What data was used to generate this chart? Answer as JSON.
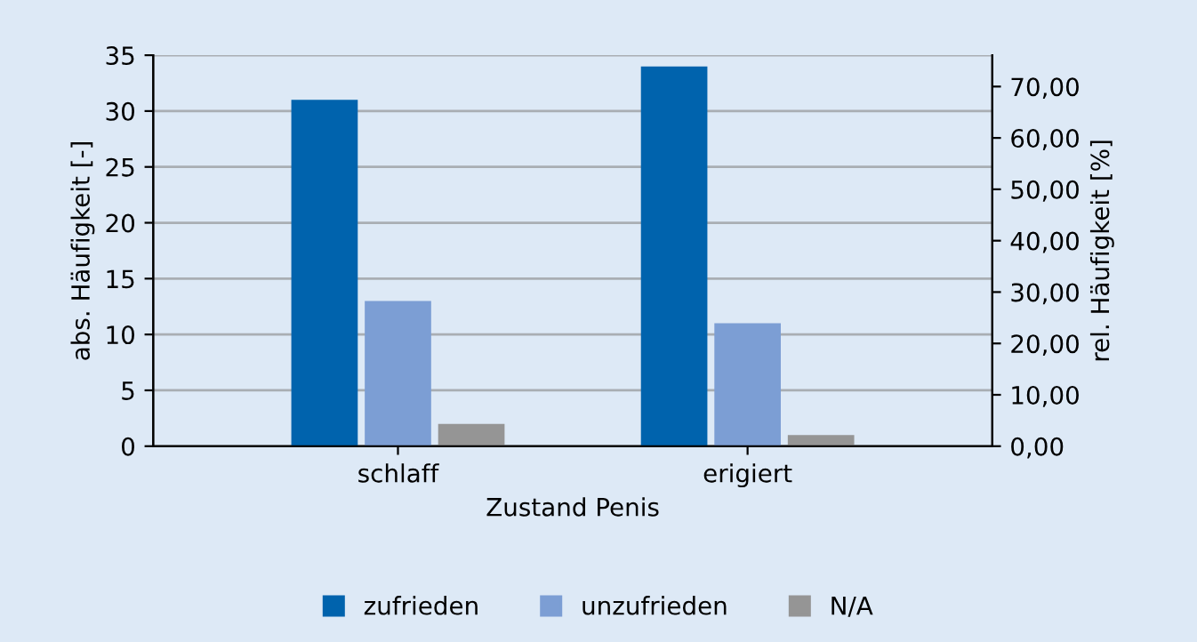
{
  "chart_data": {
    "type": "bar",
    "xlabel": "Zustand Penis",
    "ylabel": "abs. Häufigkeit [-]",
    "y2label": "rel. Häufigkeit [%]",
    "categories": [
      "schlaff",
      "erigiert"
    ],
    "series": [
      {
        "name": "zufrieden",
        "color": "#0063ad",
        "values": [
          31,
          34
        ]
      },
      {
        "name": "unzufrieden",
        "color": "#7c9ed4",
        "values": [
          13,
          11
        ]
      },
      {
        "name": "N/A",
        "color": "#959595",
        "values": [
          2,
          1
        ]
      }
    ],
    "ylim": [
      0,
      35
    ],
    "yticks": [
      0,
      5,
      10,
      15,
      20,
      25,
      30,
      35
    ],
    "y2lim": [
      0,
      76.1
    ],
    "y2ticks": [
      {
        "value": 0,
        "label": "0,00"
      },
      {
        "value": 10,
        "label": "10,00"
      },
      {
        "value": 20,
        "label": "20,00"
      },
      {
        "value": 30,
        "label": "30,00"
      },
      {
        "value": 40,
        "label": "40,00"
      },
      {
        "value": 50,
        "label": "50,00"
      },
      {
        "value": 60,
        "label": "60,00"
      },
      {
        "value": 70,
        "label": "70,00"
      }
    ],
    "grid": "y",
    "legend": "bottom"
  }
}
